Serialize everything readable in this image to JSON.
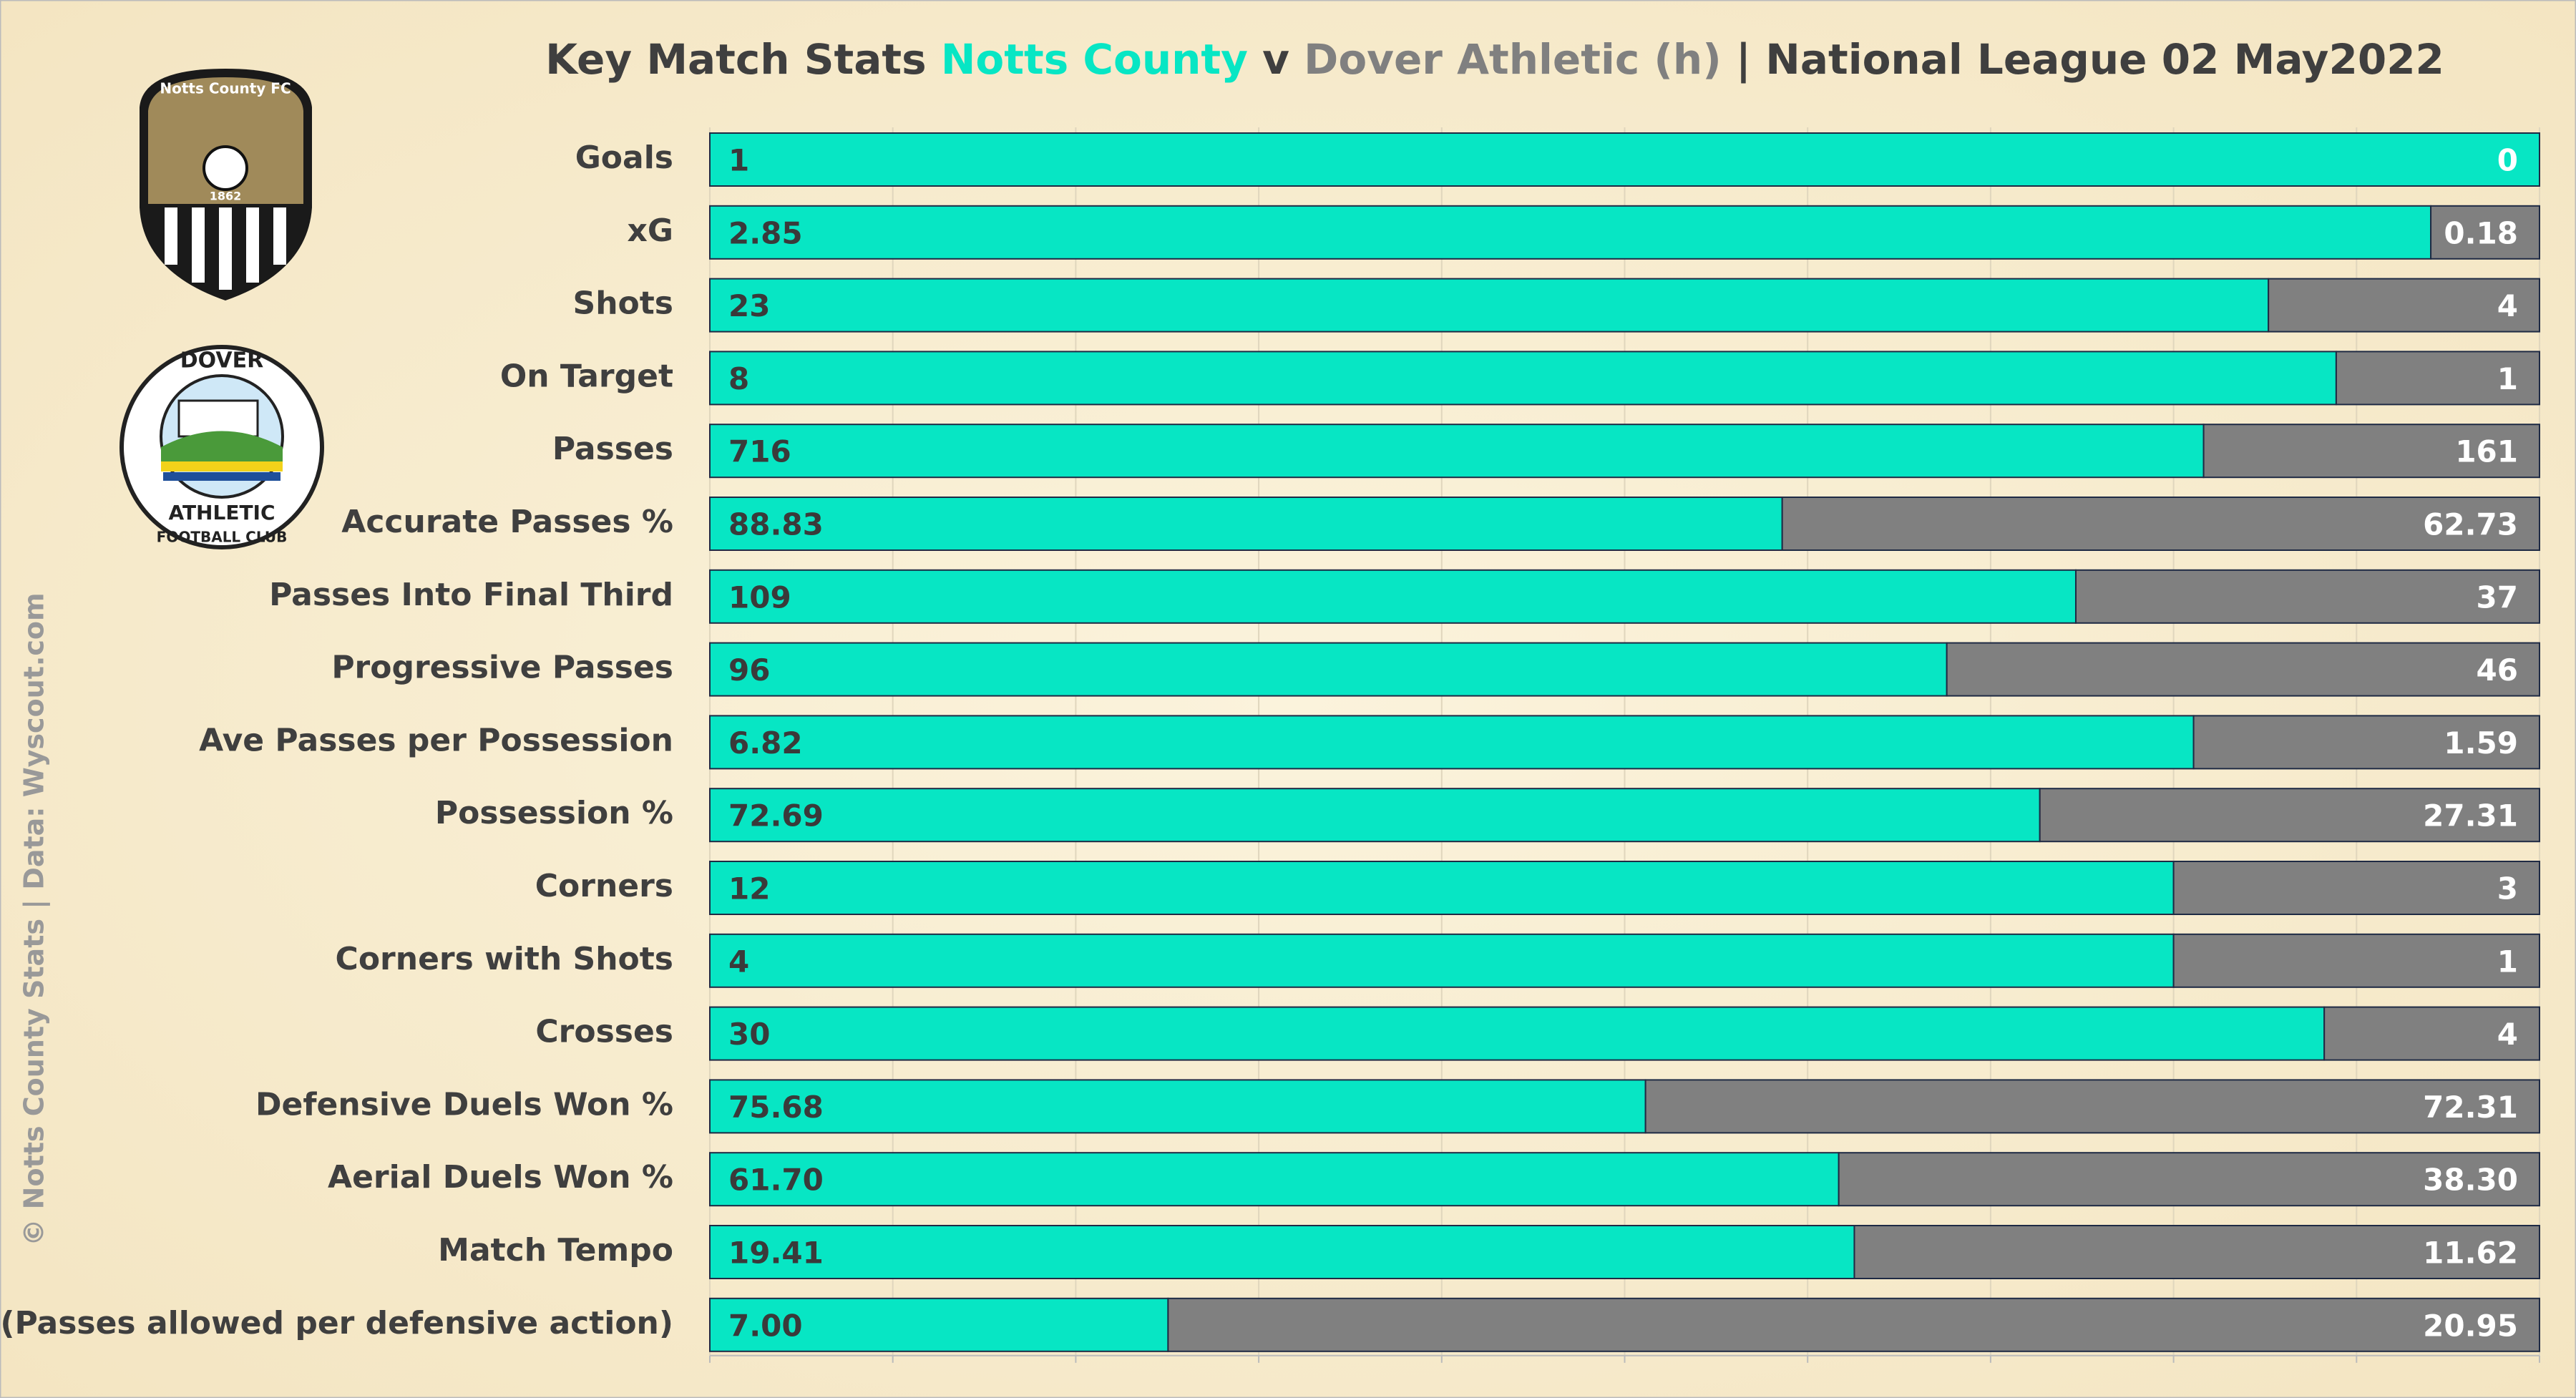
{
  "chart_data": {
    "type": "stacked-bar-100",
    "title_prefix": "Key Match Stats",
    "title_connector": "v",
    "title_suffix": "| National League 02 May2022",
    "credit": "© Notts County Stats | Data: Wyscout.com",
    "logos": [
      {
        "texts": [
          "Notts County FC",
          "1862"
        ]
      },
      {
        "texts": [
          "DOVER",
          "ATHLETIC",
          "FOOTBALL CLUB"
        ]
      }
    ],
    "categories": [
      "Goals",
      "xG",
      "Shots",
      "On Target",
      "Passes",
      "Accurate Passes %",
      "Passes Into Final Third",
      "Progressive Passes",
      "Ave Passes per Possession",
      "Possession %",
      "Corners",
      "Corners with Shots",
      "Crosses",
      "Defensive Duels Won %",
      "Aerial Duels Won %",
      "Match Tempo",
      "PPDA (Passes allowed per defensive action)"
    ],
    "series": [
      {
        "name": "Notts County",
        "color": "#07e6c4",
        "values": [
          1,
          2.85,
          23,
          8,
          716,
          88.83,
          109,
          96,
          6.82,
          72.69,
          12,
          4,
          30,
          75.68,
          61.7,
          19.41,
          7.0
        ],
        "value_labels": [
          "1",
          "2.85",
          "23",
          "8",
          "716",
          "88.83",
          "109",
          "96",
          "6.82",
          "72.69",
          "12",
          "4",
          "30",
          "75.68",
          "61.70",
          "19.41",
          "7.00"
        ]
      },
      {
        "name": "Dover Athletic (h)",
        "color": "#808080",
        "values": [
          0,
          0.18,
          4,
          1,
          161,
          62.73,
          37,
          46,
          1.59,
          27.31,
          3,
          1,
          4,
          72.31,
          38.3,
          11.62,
          20.95
        ],
        "value_labels": [
          "0",
          "0.18",
          "4",
          "1",
          "161",
          "62.73",
          "37",
          "46",
          "1.59",
          "27.31",
          "3",
          "1",
          "4",
          "72.31",
          "38.30",
          "11.62",
          "20.95"
        ]
      }
    ],
    "xlim": [
      0,
      100
    ],
    "xticks": [
      0,
      10,
      20,
      30,
      40,
      50,
      60,
      70,
      80,
      90,
      100
    ],
    "grid": true
  }
}
